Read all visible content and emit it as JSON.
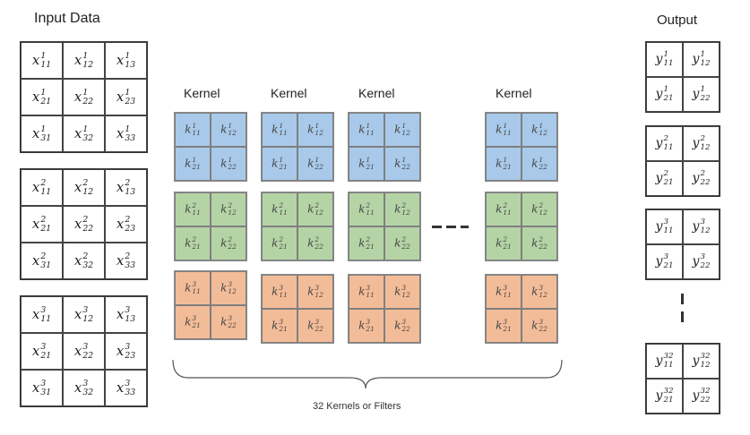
{
  "labels": {
    "input_title": "Input Data",
    "output_title": "Output",
    "kernel_title": "Kernel",
    "kernels_caption": "32 Kernels or Filters"
  },
  "input": {
    "symbol": "x",
    "channels": [
      "1",
      "2",
      "3"
    ],
    "rows": 3,
    "cols": 3
  },
  "kernel": {
    "symbol": "k",
    "channels": [
      "1",
      "2",
      "3"
    ],
    "rows": 2,
    "cols": 2,
    "channel_colors": [
      "#a9c9ea",
      "#b5d4a6",
      "#f3bc98"
    ],
    "columns": 4
  },
  "output": {
    "symbol": "y",
    "channels": [
      "1",
      "2",
      "3",
      "32"
    ],
    "rows": 2,
    "cols": 2
  },
  "colors": {
    "kernel_channel_1": "#a9c9ea",
    "kernel_channel_2": "#b5d4a6",
    "kernel_channel_3": "#f3bc98",
    "grid_border": "#444444",
    "text": "#222222"
  }
}
